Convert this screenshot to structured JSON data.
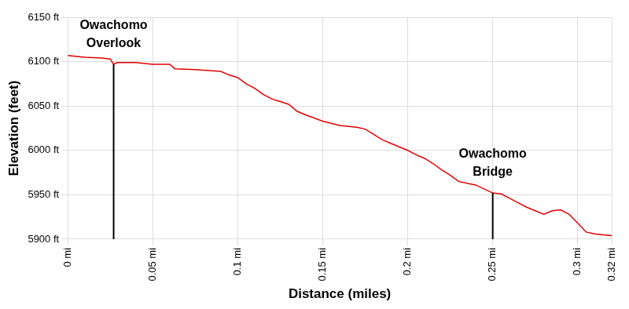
{
  "chart_data": {
    "type": "line",
    "x_label": "Distance (miles)",
    "y_label": "Elevation (feet)",
    "color": "#e00000",
    "grid": true,
    "x": [
      0,
      0.01,
      0.02,
      0.025,
      0.027,
      0.029,
      0.04,
      0.05,
      0.06,
      0.063,
      0.075,
      0.09,
      0.095,
      0.1,
      0.105,
      0.11,
      0.115,
      0.12,
      0.125,
      0.13,
      0.135,
      0.14,
      0.15,
      0.16,
      0.17,
      0.175,
      0.18,
      0.185,
      0.19,
      0.2,
      0.205,
      0.21,
      0.215,
      0.22,
      0.225,
      0.23,
      0.24,
      0.25,
      0.255,
      0.26,
      0.265,
      0.27,
      0.28,
      0.285,
      0.29,
      0.295,
      0.3,
      0.305,
      0.31,
      0.32
    ],
    "values": [
      6107,
      6105,
      6104,
      6103,
      6097,
      6099,
      6099,
      6097,
      6097,
      6092,
      6091,
      6089,
      6085,
      6082,
      6075,
      6070,
      6063,
      6058,
      6055,
      6052,
      6044,
      6040,
      6033,
      6028,
      6026,
      6024,
      6018,
      6012,
      6008,
      6000,
      5995,
      5991,
      5985,
      5978,
      5972,
      5965,
      5961,
      5952,
      5951,
      5946,
      5941,
      5936,
      5928,
      5932,
      5933,
      5928,
      5918,
      5908,
      5906,
      5904
    ],
    "xlim": [
      0,
      0.32
    ],
    "xticks": [
      {
        "value": 0,
        "label": "0 mi"
      },
      {
        "value": 0.05,
        "label": "0.05 mi"
      },
      {
        "value": 0.1,
        "label": "0.1 mi"
      },
      {
        "value": 0.15,
        "label": "0.15 mi"
      },
      {
        "value": 0.2,
        "label": "0.2 mi"
      },
      {
        "value": 0.25,
        "label": "0.25 mi"
      },
      {
        "value": 0.3,
        "label": "0.3 mi"
      },
      {
        "value": 0.32,
        "label": "0.32 mi"
      }
    ],
    "ylim": [
      5900,
      6150
    ],
    "yticks": [
      {
        "value": 5900,
        "label": "5900 ft"
      },
      {
        "value": 5950,
        "label": "5950 ft"
      },
      {
        "value": 6000,
        "label": "6000 ft"
      },
      {
        "value": 6050,
        "label": "6050 ft"
      },
      {
        "value": 6100,
        "label": "6100 ft"
      },
      {
        "value": 6150,
        "label": "6150 ft"
      }
    ],
    "annotations": [
      {
        "text": "Owachomo Overlook",
        "x": 0.027
      },
      {
        "text": "Owachomo Bridge",
        "x": 0.25
      }
    ]
  }
}
